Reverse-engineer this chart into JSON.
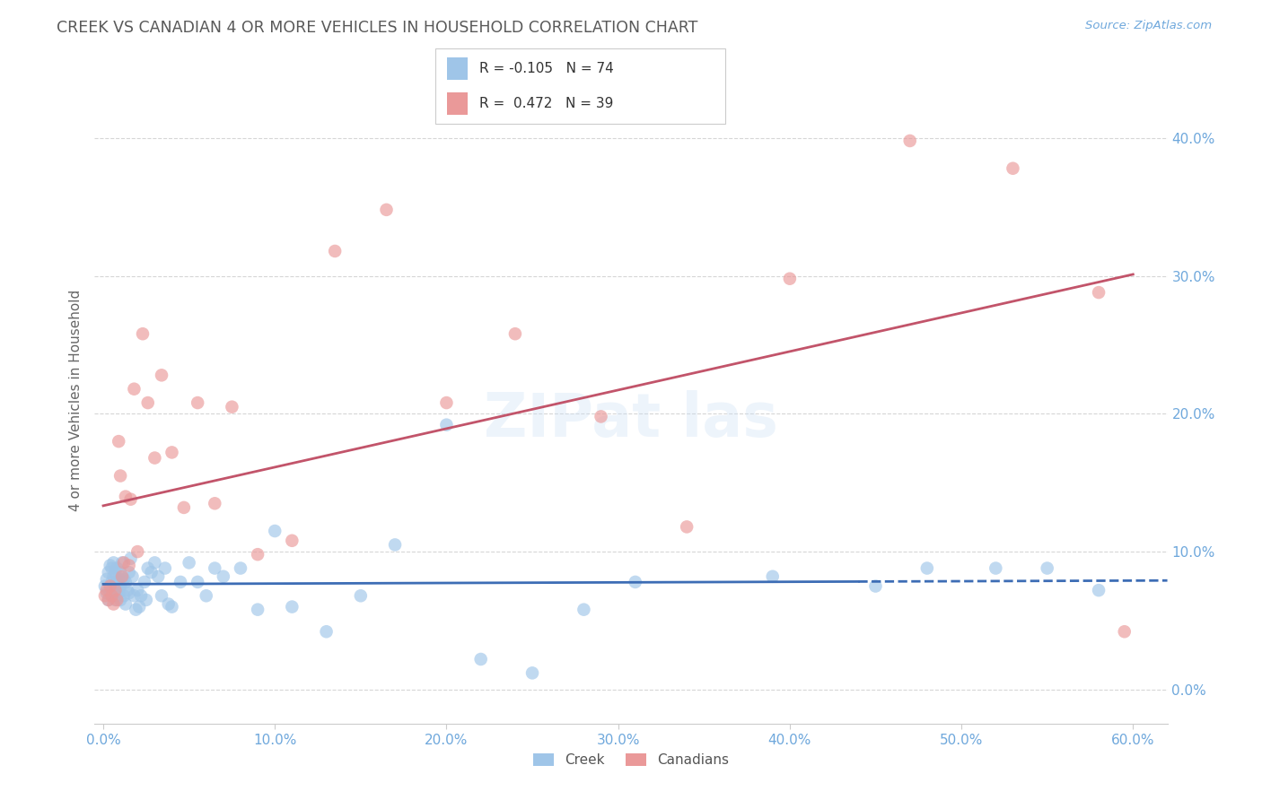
{
  "title": "CREEK VS CANADIAN 4 OR MORE VEHICLES IN HOUSEHOLD CORRELATION CHART",
  "source": "Source: ZipAtlas.com",
  "ylabel": "4 or more Vehicles in Household",
  "legend_blue_r": "-0.105",
  "legend_blue_n": "74",
  "legend_pink_r": "0.472",
  "legend_pink_n": "39",
  "legend_labels": [
    "Creek",
    "Canadians"
  ],
  "watermark": "ZIPat las",
  "background_color": "#ffffff",
  "blue_color": "#9fc5e8",
  "pink_color": "#ea9999",
  "blue_line_color": "#3d6db5",
  "pink_line_color": "#c2546a",
  "grid_color": "#cccccc",
  "title_color": "#595959",
  "axis_label_color": "#6fa8dc",
  "tick_label_color": "#6fa8dc",
  "creek_x": [
    0.001,
    0.002,
    0.002,
    0.003,
    0.003,
    0.004,
    0.004,
    0.005,
    0.005,
    0.005,
    0.006,
    0.006,
    0.006,
    0.007,
    0.007,
    0.007,
    0.008,
    0.008,
    0.008,
    0.009,
    0.009,
    0.01,
    0.01,
    0.01,
    0.011,
    0.011,
    0.012,
    0.012,
    0.013,
    0.013,
    0.014,
    0.015,
    0.015,
    0.016,
    0.017,
    0.018,
    0.019,
    0.02,
    0.021,
    0.022,
    0.024,
    0.025,
    0.026,
    0.028,
    0.03,
    0.032,
    0.034,
    0.036,
    0.038,
    0.04,
    0.045,
    0.05,
    0.055,
    0.06,
    0.065,
    0.07,
    0.08,
    0.09,
    0.1,
    0.11,
    0.13,
    0.15,
    0.17,
    0.2,
    0.22,
    0.25,
    0.28,
    0.31,
    0.39,
    0.45,
    0.48,
    0.52,
    0.55,
    0.58
  ],
  "creek_y": [
    0.075,
    0.07,
    0.08,
    0.065,
    0.085,
    0.07,
    0.09,
    0.068,
    0.078,
    0.088,
    0.072,
    0.082,
    0.092,
    0.065,
    0.075,
    0.085,
    0.068,
    0.078,
    0.088,
    0.07,
    0.08,
    0.065,
    0.075,
    0.085,
    0.078,
    0.092,
    0.068,
    0.08,
    0.062,
    0.078,
    0.072,
    0.085,
    0.07,
    0.095,
    0.082,
    0.068,
    0.058,
    0.072,
    0.06,
    0.068,
    0.078,
    0.065,
    0.088,
    0.085,
    0.092,
    0.082,
    0.068,
    0.088,
    0.062,
    0.06,
    0.078,
    0.092,
    0.078,
    0.068,
    0.088,
    0.082,
    0.088,
    0.058,
    0.115,
    0.06,
    0.042,
    0.068,
    0.105,
    0.192,
    0.022,
    0.012,
    0.058,
    0.078,
    0.082,
    0.075,
    0.088,
    0.088,
    0.088,
    0.072
  ],
  "canadian_x": [
    0.001,
    0.002,
    0.003,
    0.004,
    0.005,
    0.006,
    0.007,
    0.008,
    0.009,
    0.01,
    0.011,
    0.012,
    0.013,
    0.015,
    0.016,
    0.018,
    0.02,
    0.023,
    0.026,
    0.03,
    0.034,
    0.04,
    0.047,
    0.055,
    0.065,
    0.075,
    0.09,
    0.11,
    0.135,
    0.165,
    0.2,
    0.24,
    0.29,
    0.34,
    0.4,
    0.47,
    0.53,
    0.58,
    0.595
  ],
  "canadian_y": [
    0.068,
    0.072,
    0.065,
    0.075,
    0.068,
    0.062,
    0.072,
    0.065,
    0.18,
    0.155,
    0.082,
    0.092,
    0.14,
    0.09,
    0.138,
    0.218,
    0.1,
    0.258,
    0.208,
    0.168,
    0.228,
    0.172,
    0.132,
    0.208,
    0.135,
    0.205,
    0.098,
    0.108,
    0.318,
    0.348,
    0.208,
    0.258,
    0.198,
    0.118,
    0.298,
    0.398,
    0.378,
    0.288,
    0.042
  ],
  "xlim": [
    -0.005,
    0.62
  ],
  "ylim": [
    -0.025,
    0.445
  ],
  "xtick_vals": [
    0.0,
    0.1,
    0.2,
    0.3,
    0.4,
    0.5,
    0.6
  ],
  "ytick_vals": [
    0.0,
    0.1,
    0.2,
    0.3,
    0.4
  ],
  "blue_line_x0": 0.0,
  "blue_line_x1": 0.44,
  "blue_line_x_dash0": 0.44,
  "blue_line_x_dash1": 0.62,
  "pink_line_x0": 0.0,
  "pink_line_x1": 0.6
}
